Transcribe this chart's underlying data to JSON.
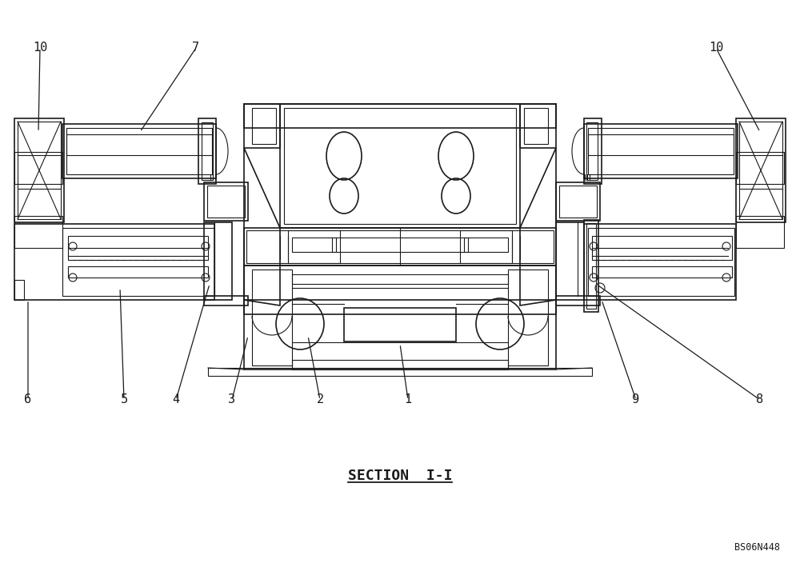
{
  "title": "SECTION  I-I",
  "code": "BS06N448",
  "bg_color": "#ffffff",
  "line_color": "#1a1a1a",
  "figsize": [
    10.0,
    7.04
  ],
  "dpi": 100
}
